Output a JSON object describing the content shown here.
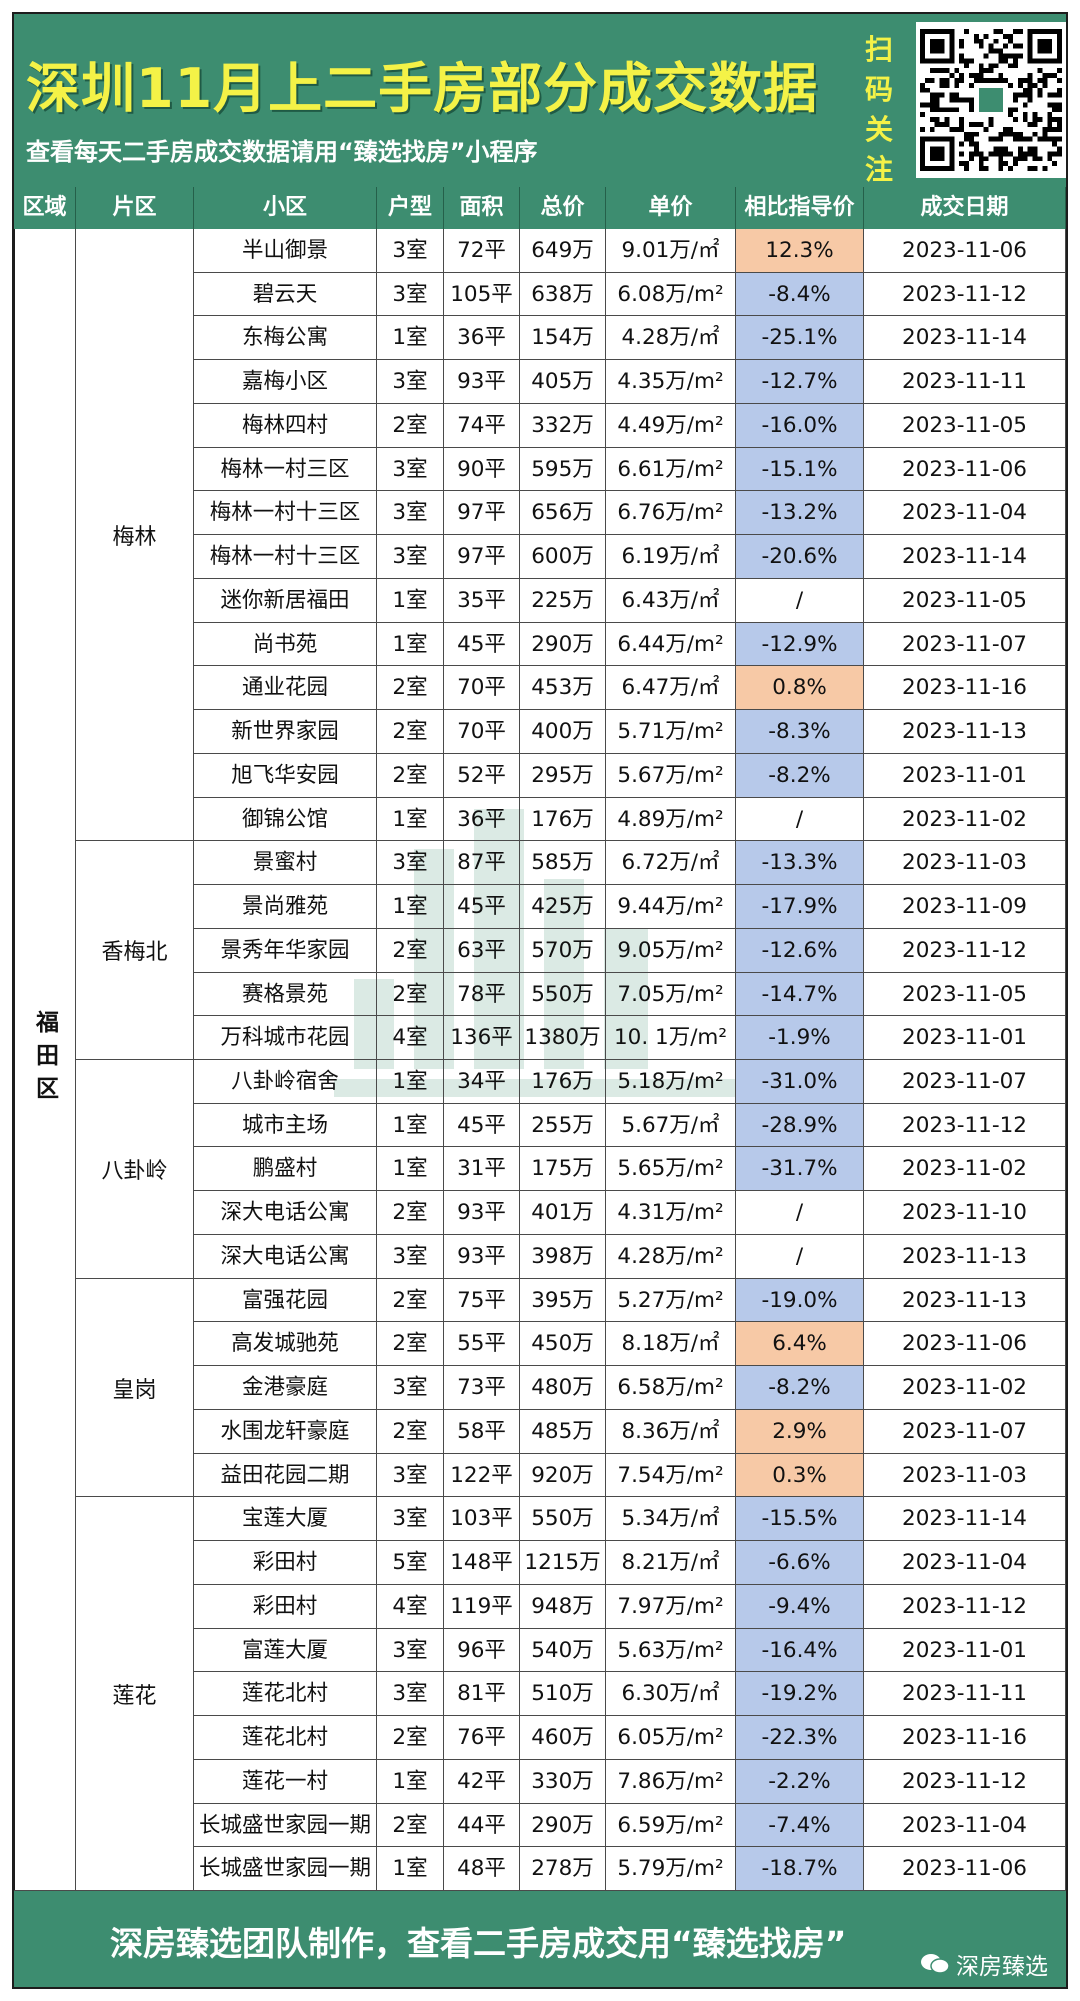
{
  "header": {
    "title": "深圳11月上二手房部分成交数据",
    "subtitle": "查看每天二手房成交数据请用“臻选找房”小程序",
    "scan_chars": [
      "扫",
      "码",
      "关",
      "注"
    ]
  },
  "columns": [
    "区域",
    "片区",
    "小区",
    "户型",
    "面积",
    "总价",
    "单价",
    "相比指导价",
    "成交日期"
  ],
  "district": "福田区",
  "areas": [
    {
      "name": "梅林",
      "rows": 14
    },
    {
      "name": "香梅北",
      "rows": 5
    },
    {
      "name": "八卦岭",
      "rows": 5
    },
    {
      "name": "皇岗",
      "rows": 5
    },
    {
      "name": "莲花",
      "rows": 9
    }
  ],
  "rows": [
    [
      "半山御景",
      "3室",
      "72平",
      "649万",
      "9.01万/㎡",
      "12.3%",
      "2023-11-06",
      "pos"
    ],
    [
      "碧云天",
      "3室",
      "105平",
      "638万",
      "6.08万/m²",
      "-8.4%",
      "2023-11-12",
      "neg"
    ],
    [
      "东梅公寓",
      "1室",
      "36平",
      "154万",
      "4.28万/㎡",
      "-25.1%",
      "2023-11-14",
      "neg"
    ],
    [
      "嘉梅小区",
      "3室",
      "93平",
      "405万",
      "4.35万/m²",
      "-12.7%",
      "2023-11-11",
      "neg"
    ],
    [
      "梅林四村",
      "2室",
      "74平",
      "332万",
      "4.49万/m²",
      "-16.0%",
      "2023-11-05",
      "neg"
    ],
    [
      "梅林一村三区",
      "3室",
      "90平",
      "595万",
      "6.61万/m²",
      "-15.1%",
      "2023-11-06",
      "neg"
    ],
    [
      "梅林一村十三区",
      "3室",
      "97平",
      "656万",
      "6.76万/m²",
      "-13.2%",
      "2023-11-04",
      "neg"
    ],
    [
      "梅林一村十三区",
      "3室",
      "97平",
      "600万",
      "6.19万/㎡",
      "-20.6%",
      "2023-11-14",
      "neg"
    ],
    [
      "迷你新居福田",
      "1室",
      "35平",
      "225万",
      "6.43万/㎡",
      "/",
      "2023-11-05",
      "none"
    ],
    [
      "尚书苑",
      "1室",
      "45平",
      "290万",
      "6.44万/m²",
      "-12.9%",
      "2023-11-07",
      "neg"
    ],
    [
      "通业花园",
      "2室",
      "70平",
      "453万",
      "6.47万/㎡",
      "0.8%",
      "2023-11-16",
      "pos"
    ],
    [
      "新世界家园",
      "2室",
      "70平",
      "400万",
      "5.71万/m²",
      "-8.3%",
      "2023-11-13",
      "neg"
    ],
    [
      "旭飞华安园",
      "2室",
      "52平",
      "295万",
      "5.67万/m²",
      "-8.2%",
      "2023-11-01",
      "neg"
    ],
    [
      "御锦公馆",
      "1室",
      "36平",
      "176万",
      "4.89万/m²",
      "/",
      "2023-11-02",
      "none"
    ],
    [
      "景蜜村",
      "3室",
      "87平",
      "585万",
      "6.72万/㎡",
      "-13.3%",
      "2023-11-03",
      "neg"
    ],
    [
      "景尚雅苑",
      "1室",
      "45平",
      "425万",
      "9.44万/m²",
      "-17.9%",
      "2023-11-09",
      "neg"
    ],
    [
      "景秀年华家园",
      "2室",
      "63平",
      "570万",
      "9.05万/m²",
      "-12.6%",
      "2023-11-12",
      "neg"
    ],
    [
      "赛格景苑",
      "2室",
      "78平",
      "550万",
      "7.05万/m²",
      "-14.7%",
      "2023-11-05",
      "neg"
    ],
    [
      "万科城市花园",
      "4室",
      "136平",
      "1380万",
      "10. 1万/m²",
      "-1.9%",
      "2023-11-01",
      "neg"
    ],
    [
      "八卦岭宿舍",
      "1室",
      "34平",
      "176万",
      "5.18万/m²",
      "-31.0%",
      "2023-11-07",
      "neg"
    ],
    [
      "城市主场",
      "1室",
      "45平",
      "255万",
      "5.67万/㎡",
      "-28.9%",
      "2023-11-12",
      "neg"
    ],
    [
      "鹏盛村",
      "1室",
      "31平",
      "175万",
      "5.65万/m²",
      "-31.7%",
      "2023-11-02",
      "neg"
    ],
    [
      "深大电话公寓",
      "2室",
      "93平",
      "401万",
      "4.31万/m²",
      "/",
      "2023-11-10",
      "none"
    ],
    [
      "深大电话公寓",
      "3室",
      "93平",
      "398万",
      "4.28万/m²",
      "/",
      "2023-11-13",
      "none"
    ],
    [
      "富强花园",
      "2室",
      "75平",
      "395万",
      "5.27万/m²",
      "-19.0%",
      "2023-11-13",
      "neg"
    ],
    [
      "高发城驰苑",
      "2室",
      "55平",
      "450万",
      "8.18万/㎡",
      "6.4%",
      "2023-11-06",
      "pos"
    ],
    [
      "金港豪庭",
      "3室",
      "73平",
      "480万",
      "6.58万/m²",
      "-8.2%",
      "2023-11-02",
      "neg"
    ],
    [
      "水围龙轩豪庭",
      "2室",
      "58平",
      "485万",
      "8.36万/㎡",
      "2.9%",
      "2023-11-07",
      "pos"
    ],
    [
      "益田花园二期",
      "3室",
      "122平",
      "920万",
      "7.54万/m²",
      "0.3%",
      "2023-11-03",
      "pos"
    ],
    [
      "宝莲大厦",
      "3室",
      "103平",
      "550万",
      "5.34万/㎡",
      "-15.5%",
      "2023-11-14",
      "neg"
    ],
    [
      "彩田村",
      "5室",
      "148平",
      "1215万",
      "8.21万/㎡",
      "-6.6%",
      "2023-11-04",
      "neg"
    ],
    [
      "彩田村",
      "4室",
      "119平",
      "948万",
      "7.97万/m²",
      "-9.4%",
      "2023-11-12",
      "neg"
    ],
    [
      "富莲大厦",
      "3室",
      "96平",
      "540万",
      "5.63万/m²",
      "-16.4%",
      "2023-11-01",
      "neg"
    ],
    [
      "莲花北村",
      "3室",
      "81平",
      "510万",
      "6.30万/㎡",
      "-19.2%",
      "2023-11-11",
      "neg"
    ],
    [
      "莲花北村",
      "2室",
      "76平",
      "460万",
      "6.05万/m²",
      "-22.3%",
      "2023-11-16",
      "neg"
    ],
    [
      "莲花一村",
      "1室",
      "42平",
      "330万",
      "7.86万/m²",
      "-2.2%",
      "2023-11-12",
      "neg"
    ],
    [
      "长城盛世家园一期",
      "2室",
      "44平",
      "290万",
      "6.59万/m²",
      "-7.4%",
      "2023-11-04",
      "neg"
    ],
    [
      "长城盛世家园一期",
      "1室",
      "48平",
      "278万",
      "5.79万/m²",
      "-18.7%",
      "2023-11-06",
      "neg"
    ]
  ],
  "footer": {
    "text": "深房臻选团队制作，查看二手房成交用“臻选找房”",
    "brand": "深房臻选"
  },
  "colors": {
    "header_bg": "#3d8d70",
    "title": "#f4f247",
    "positive": "#f7c9a6",
    "negative": "#b7c9ea"
  }
}
